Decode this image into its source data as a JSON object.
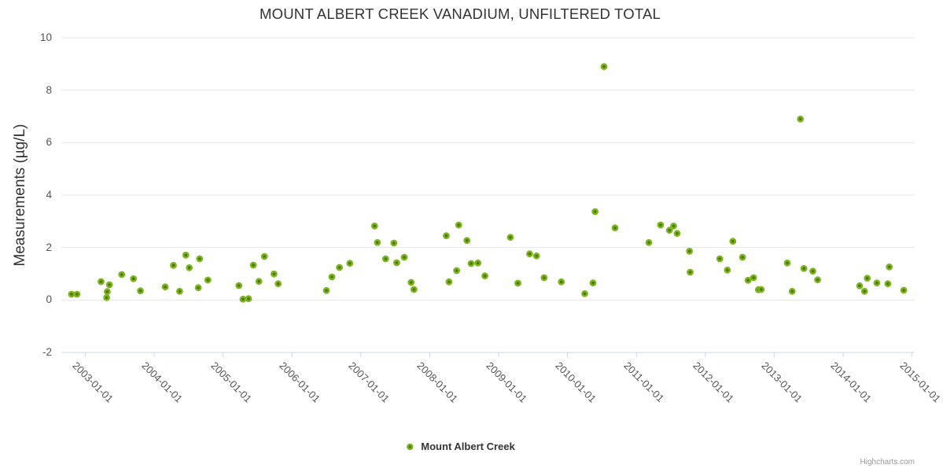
{
  "style_colors": {
    "background": "#ffffff",
    "grid_line": "#e6e6e6",
    "axis_line": "#ccd6eb",
    "title_text": "#333333",
    "tick_label_text": "#555555",
    "legend_text": "#333333",
    "credits_text": "#999999",
    "marker_ring": "#7db41c",
    "marker_core": "#48760e"
  },
  "chart_data": {
    "type": "scatter",
    "title": "MOUNT ALBERT CREEK VANADIUM, UNFILTERED TOTAL",
    "xlabel": "",
    "ylabel": "Measurements (µg/L)",
    "x_unit": "decimal_year",
    "ylim": [
      -2,
      10
    ],
    "y_tick_values": [
      -2,
      0,
      2,
      4,
      6,
      8,
      10
    ],
    "y_tick_labels": [
      "-2",
      "0",
      "2",
      "4",
      "6",
      "8",
      "10"
    ],
    "x_tick_years": [
      2003,
      2004,
      2005,
      2006,
      2007,
      2008,
      2009,
      2010,
      2011,
      2012,
      2013,
      2014,
      2015
    ],
    "x_tick_labels": [
      "2003-01-01",
      "2004-01-01",
      "2005-01-01",
      "2006-01-01",
      "2007-01-01",
      "2008-01-01",
      "2009-01-01",
      "2010-01-01",
      "2011-01-01",
      "2012-01-01",
      "2013-01-01",
      "2014-01-01",
      "2015-01-01"
    ],
    "x_label_rotation_deg": 45,
    "grid": "horizontal",
    "legend_position": "bottom-center",
    "credits": "Highcharts.com",
    "series": [
      {
        "name": "Mount Albert Creek",
        "marker": {
          "ring_color": "#7db41c",
          "core_color": "#48760e"
        },
        "data": [
          [
            2002.8,
            0.22
          ],
          [
            2002.88,
            0.22
          ],
          [
            2003.23,
            0.7
          ],
          [
            2003.31,
            0.09
          ],
          [
            2003.32,
            0.32
          ],
          [
            2003.35,
            0.58
          ],
          [
            2003.53,
            0.97
          ],
          [
            2003.7,
            0.81
          ],
          [
            2003.8,
            0.35
          ],
          [
            2004.16,
            0.5
          ],
          [
            2004.28,
            1.32
          ],
          [
            2004.37,
            0.33
          ],
          [
            2004.46,
            1.71
          ],
          [
            2004.51,
            1.23
          ],
          [
            2004.64,
            0.47
          ],
          [
            2004.66,
            1.57
          ],
          [
            2004.78,
            0.76
          ],
          [
            2005.23,
            0.55
          ],
          [
            2005.29,
            0.03
          ],
          [
            2005.37,
            0.05
          ],
          [
            2005.44,
            1.33
          ],
          [
            2005.52,
            0.71
          ],
          [
            2005.6,
            1.66
          ],
          [
            2005.74,
            0.99
          ],
          [
            2005.8,
            0.62
          ],
          [
            2006.5,
            0.36
          ],
          [
            2006.58,
            0.88
          ],
          [
            2006.69,
            1.24
          ],
          [
            2006.84,
            1.4
          ],
          [
            2007.2,
            2.82
          ],
          [
            2007.24,
            2.19
          ],
          [
            2007.36,
            1.57
          ],
          [
            2007.48,
            2.17
          ],
          [
            2007.52,
            1.42
          ],
          [
            2007.63,
            1.63
          ],
          [
            2007.73,
            0.67
          ],
          [
            2007.77,
            0.4
          ],
          [
            2008.24,
            2.45
          ],
          [
            2008.28,
            0.69
          ],
          [
            2008.39,
            1.12
          ],
          [
            2008.42,
            2.86
          ],
          [
            2008.54,
            2.27
          ],
          [
            2008.6,
            1.39
          ],
          [
            2008.7,
            1.41
          ],
          [
            2008.8,
            0.92
          ],
          [
            2009.17,
            2.39
          ],
          [
            2009.28,
            0.64
          ],
          [
            2009.45,
            1.76
          ],
          [
            2009.55,
            1.68
          ],
          [
            2009.66,
            0.85
          ],
          [
            2009.91,
            0.69
          ],
          [
            2010.25,
            0.24
          ],
          [
            2010.37,
            0.65
          ],
          [
            2010.4,
            3.37
          ],
          [
            2010.53,
            8.9
          ],
          [
            2010.69,
            2.75
          ],
          [
            2011.18,
            2.19
          ],
          [
            2011.35,
            2.86
          ],
          [
            2011.48,
            2.66
          ],
          [
            2011.54,
            2.82
          ],
          [
            2011.59,
            2.54
          ],
          [
            2011.77,
            1.86
          ],
          [
            2011.78,
            1.06
          ],
          [
            2012.21,
            1.57
          ],
          [
            2012.32,
            1.14
          ],
          [
            2012.4,
            2.24
          ],
          [
            2012.54,
            1.63
          ],
          [
            2012.62,
            0.75
          ],
          [
            2012.7,
            0.85
          ],
          [
            2012.77,
            0.39
          ],
          [
            2012.81,
            0.4
          ],
          [
            2013.19,
            1.41
          ],
          [
            2013.26,
            0.33
          ],
          [
            2013.38,
            6.9
          ],
          [
            2013.43,
            1.2
          ],
          [
            2013.56,
            1.1
          ],
          [
            2013.63,
            0.77
          ],
          [
            2014.24,
            0.54
          ],
          [
            2014.31,
            0.33
          ],
          [
            2014.35,
            0.83
          ],
          [
            2014.49,
            0.65
          ],
          [
            2014.65,
            0.62
          ],
          [
            2014.67,
            1.26
          ],
          [
            2014.88,
            0.37
          ]
        ]
      }
    ]
  }
}
